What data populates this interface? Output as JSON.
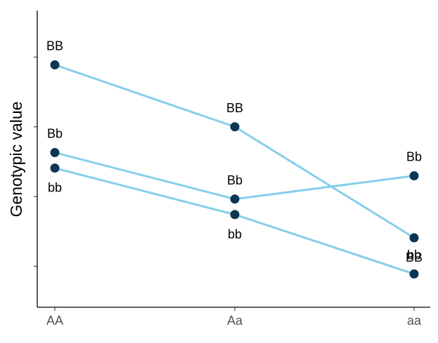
{
  "chart_data": {
    "type": "line",
    "title": "",
    "xlabel": "",
    "ylabel": "Genotypic value",
    "categories": [
      "AA",
      "Aa",
      "aa"
    ],
    "ylim": [
      0,
      10
    ],
    "y_ticks_labeled": false,
    "grid": false,
    "legend": "none",
    "line_color": "#87CEEB",
    "point_color": "#0D3554",
    "series": [
      {
        "values": [
          9.2,
          6.8,
          2.5
        ],
        "labels": [
          "BB",
          "BB",
          "BB"
        ],
        "label_pos": [
          "above",
          "above",
          "below"
        ]
      },
      {
        "values": [
          5.8,
          4.0,
          4.9
        ],
        "labels": [
          "Bb",
          "Bb",
          "Bb"
        ],
        "label_pos": [
          "above",
          "above",
          "above"
        ]
      },
      {
        "values": [
          5.2,
          3.4,
          1.1
        ],
        "labels": [
          "bb",
          "bb",
          "bb"
        ],
        "label_pos": [
          "below",
          "below",
          "above"
        ]
      }
    ]
  }
}
